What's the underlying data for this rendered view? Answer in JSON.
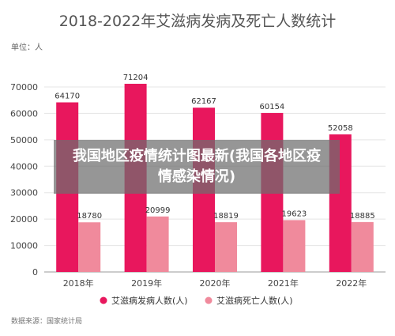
{
  "chart_data": {
    "type": "bar",
    "title": "2018-2022年艾滋病发病及死亡人数统计",
    "unit_label": "单位：人",
    "categories": [
      "2018年",
      "2019年",
      "2020年",
      "2021年",
      "2022年"
    ],
    "series": [
      {
        "name": "艾滋病发病人数(人)",
        "values": [
          64170,
          71204,
          62167,
          60154,
          52058
        ],
        "color": "#e8175d"
      },
      {
        "name": "艾滋病死亡人数(人)",
        "values": [
          18780,
          20999,
          18819,
          19623,
          18885
        ],
        "color": "#f08a9c"
      }
    ],
    "ylim": [
      0,
      70000
    ],
    "yticks": [
      0,
      10000,
      20000,
      30000,
      40000,
      50000,
      60000,
      70000
    ],
    "grid": true,
    "legend_position": "bottom",
    "source": "数据来源：国家统计局"
  },
  "overlay": {
    "text": "我国地区疫情统计图最新(我国各地区疫情感染情况)"
  }
}
